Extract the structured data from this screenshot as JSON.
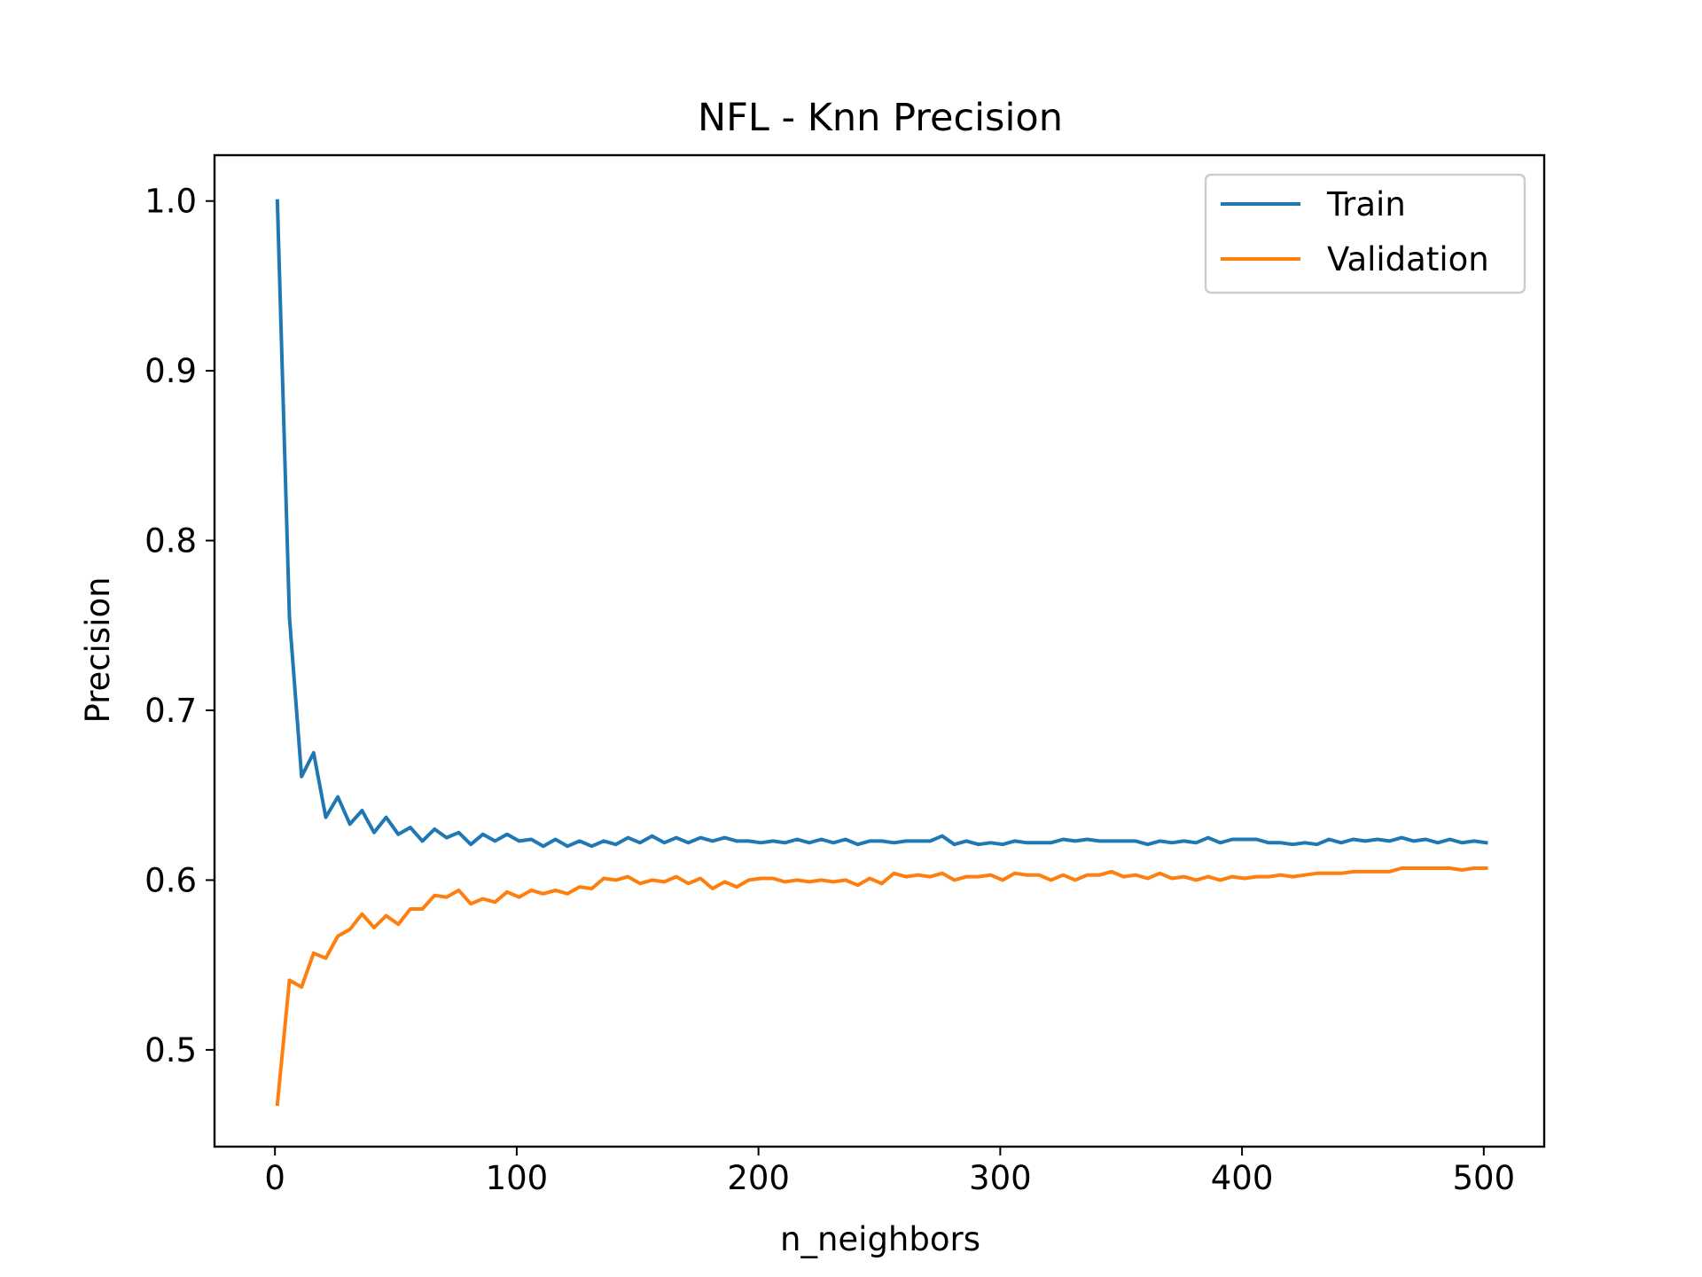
{
  "chart_data": {
    "type": "line",
    "title": "NFL - Knn Precision",
    "xlabel": "n_neighbors",
    "ylabel": "Precision",
    "xlim": [
      -25,
      525
    ],
    "ylim": [
      0.443,
      1.027
    ],
    "xticks": [
      0,
      100,
      200,
      300,
      400,
      500
    ],
    "xtick_labels": [
      "0",
      "100",
      "200",
      "300",
      "400",
      "500"
    ],
    "yticks": [
      0.5,
      0.6,
      0.7,
      0.8,
      0.9,
      1.0
    ],
    "ytick_labels": [
      "0.5",
      "0.6",
      "0.7",
      "0.8",
      "0.9",
      "1.0"
    ],
    "grid": false,
    "legend_position": "top-right",
    "x": [
      1,
      6,
      11,
      16,
      21,
      26,
      31,
      36,
      41,
      46,
      51,
      56,
      61,
      66,
      71,
      76,
      81,
      86,
      91,
      96,
      101,
      106,
      111,
      116,
      121,
      126,
      131,
      136,
      141,
      146,
      151,
      156,
      161,
      166,
      171,
      176,
      181,
      186,
      191,
      196,
      201,
      206,
      211,
      216,
      221,
      226,
      231,
      236,
      241,
      246,
      251,
      256,
      261,
      266,
      271,
      276,
      281,
      286,
      291,
      296,
      301,
      306,
      311,
      316,
      321,
      326,
      331,
      336,
      341,
      346,
      351,
      356,
      361,
      366,
      371,
      376,
      381,
      386,
      391,
      396,
      401,
      406,
      411,
      416,
      421,
      426,
      431,
      436,
      441,
      446,
      451,
      456,
      461,
      466,
      471,
      476,
      481,
      486,
      491,
      496,
      501
    ],
    "series": [
      {
        "name": "Train",
        "color": "#1f77b4",
        "values": [
          1.0,
          0.755,
          0.661,
          0.675,
          0.637,
          0.649,
          0.633,
          0.641,
          0.628,
          0.637,
          0.627,
          0.631,
          0.623,
          0.63,
          0.625,
          0.628,
          0.621,
          0.627,
          0.623,
          0.627,
          0.623,
          0.624,
          0.62,
          0.624,
          0.62,
          0.623,
          0.62,
          0.623,
          0.621,
          0.625,
          0.622,
          0.626,
          0.622,
          0.625,
          0.622,
          0.625,
          0.623,
          0.625,
          0.623,
          0.623,
          0.622,
          0.623,
          0.622,
          0.624,
          0.622,
          0.624,
          0.622,
          0.624,
          0.621,
          0.623,
          0.623,
          0.622,
          0.623,
          0.623,
          0.623,
          0.626,
          0.621,
          0.623,
          0.621,
          0.622,
          0.621,
          0.623,
          0.622,
          0.622,
          0.622,
          0.624,
          0.623,
          0.624,
          0.623,
          0.623,
          0.623,
          0.623,
          0.621,
          0.623,
          0.622,
          0.623,
          0.622,
          0.625,
          0.622,
          0.624,
          0.624,
          0.624,
          0.622,
          0.622,
          0.621,
          0.622,
          0.621,
          0.624,
          0.622,
          0.624,
          0.623,
          0.624,
          0.623,
          0.625,
          0.623,
          0.624,
          0.622,
          0.624,
          0.622,
          0.623,
          0.622
        ]
      },
      {
        "name": "Validation",
        "color": "#ff7f0e",
        "values": [
          0.468,
          0.541,
          0.537,
          0.557,
          0.554,
          0.567,
          0.571,
          0.58,
          0.572,
          0.579,
          0.574,
          0.583,
          0.583,
          0.591,
          0.59,
          0.594,
          0.586,
          0.589,
          0.587,
          0.593,
          0.59,
          0.594,
          0.592,
          0.594,
          0.592,
          0.596,
          0.595,
          0.601,
          0.6,
          0.602,
          0.598,
          0.6,
          0.599,
          0.602,
          0.598,
          0.601,
          0.595,
          0.599,
          0.596,
          0.6,
          0.601,
          0.601,
          0.599,
          0.6,
          0.599,
          0.6,
          0.599,
          0.6,
          0.597,
          0.601,
          0.598,
          0.604,
          0.602,
          0.603,
          0.602,
          0.604,
          0.6,
          0.602,
          0.602,
          0.603,
          0.6,
          0.604,
          0.603,
          0.603,
          0.6,
          0.603,
          0.6,
          0.603,
          0.603,
          0.605,
          0.602,
          0.603,
          0.601,
          0.604,
          0.601,
          0.602,
          0.6,
          0.602,
          0.6,
          0.602,
          0.601,
          0.602,
          0.602,
          0.603,
          0.602,
          0.603,
          0.604,
          0.604,
          0.604,
          0.605,
          0.605,
          0.605,
          0.605,
          0.607,
          0.607,
          0.607,
          0.607,
          0.607,
          0.606,
          0.607,
          0.607
        ]
      }
    ]
  }
}
